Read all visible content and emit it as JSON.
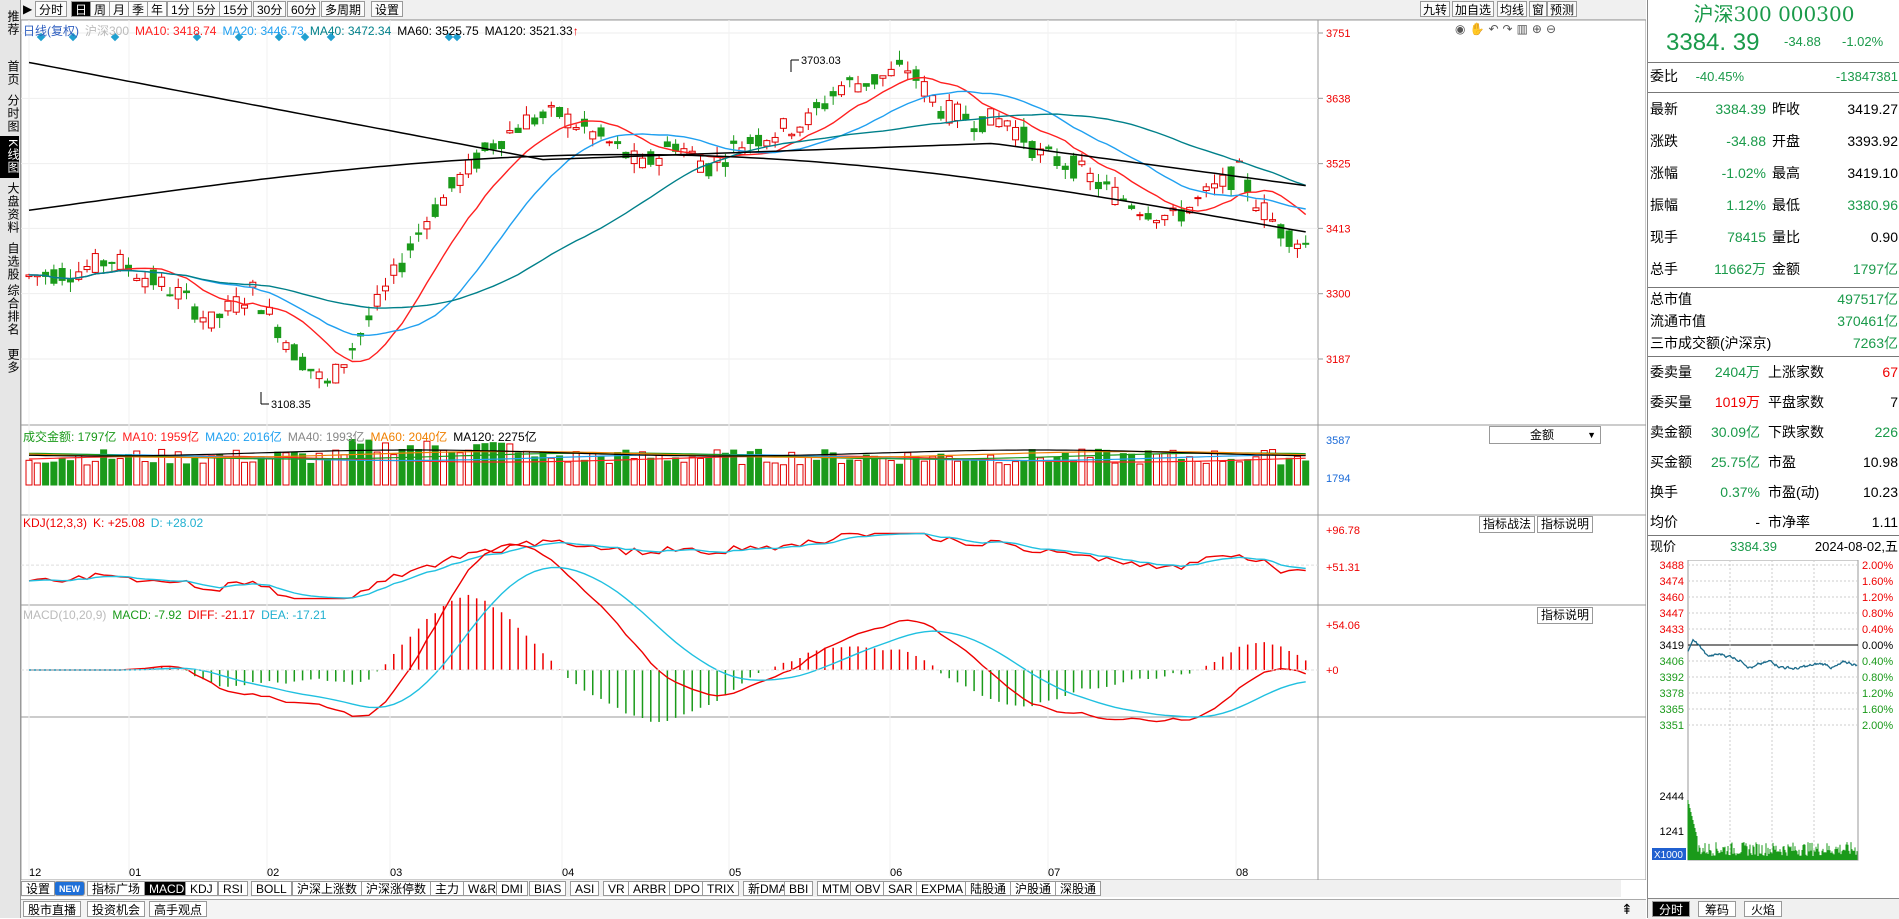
{
  "left_tabs": [
    "推荐",
    "首页",
    "分时图",
    "K线图",
    "大盘资料",
    "自选股",
    "综合排名",
    "更多"
  ],
  "toolbar": {
    "arrow": "▶",
    "periods": [
      "分时",
      "日",
      "周",
      "月",
      "季",
      "年",
      "1分",
      "5分",
      "15分",
      "30分",
      "60分",
      "多周期",
      "设置"
    ],
    "active_period": "日",
    "right": [
      "九转",
      "加自选",
      "均线",
      "窗",
      "预测"
    ]
  },
  "legend": {
    "title": "日线(复权)",
    "code_name": "沪深300",
    "ma10": "MA10: 3418.74",
    "ma20": "MA20: 3446.73",
    "ma40": "MA40: 3472.34",
    "ma60": "MA60: 3525.75",
    "ma120": "MA120: 3521.33",
    "ma120_arrow": "↑"
  },
  "price_axis": [
    "3751",
    "3638",
    "3525",
    "3413",
    "3300",
    "3187"
  ],
  "annotations": {
    "high": "3703.03",
    "low": "3108.35"
  },
  "volume": {
    "legend": {
      "total": "成交金额: 1797亿",
      "ma10": "MA10: 1959亿",
      "ma20": "MA20: 2016亿",
      "ma40": "MA40: 1993亿",
      "ma60": "MA60: 2040亿",
      "ma120": "MA120: 2275亿"
    },
    "selector": "金额",
    "selector_arrow": "▼",
    "axis": [
      "3587",
      "1794"
    ]
  },
  "kdj": {
    "legend": {
      "name": "KDJ(12,3,3)",
      "k": "K: +25.08",
      "d": "D: +28.02"
    },
    "btn1": "指标战法",
    "btn2": "指标说明",
    "axis": [
      "+96.78",
      "+51.31"
    ]
  },
  "macd": {
    "legend": {
      "name": "MACD(10,20,9)",
      "macd": "MACD: -7.92",
      "diff": "DIFF: -21.17",
      "dea": "DEA: -17.21"
    },
    "btn": "指标说明",
    "axis": [
      "+54.06",
      "+0"
    ]
  },
  "date_axis": [
    "12",
    "01",
    "02",
    "03",
    "04",
    "05",
    "06",
    "07",
    "08"
  ],
  "indicator_tabs": [
    "设置",
    "NEW",
    "指标广场",
    "MACD",
    "KDJ",
    "RSI",
    "BOLL",
    "沪深上涨数",
    "沪深涨停数",
    "主力",
    "W&R",
    "DMI",
    "BIAS",
    "ASI",
    "VR",
    "ARBR",
    "DPO",
    "TRIX",
    "新DMA",
    "BBI",
    "MTM",
    "OBV",
    "SAR",
    "EXPMA",
    "陆股通",
    "沪股通",
    "深股通"
  ],
  "active_indicator": "MACD",
  "bottom_bar": [
    "股市直播",
    "投资机会",
    "高手观点"
  ],
  "bottom_arrow": "⇞",
  "quote": {
    "title": "沪深300 000300",
    "price": "3384. 39",
    "change": "-34.88",
    "change_pct": "-1.02%",
    "weibi_label": "委比",
    "weibi_pct": "-40.45%",
    "weibi_val": "-13847381",
    "rows": [
      {
        "k1": "最新",
        "v1": "3384.39",
        "k2": "昨收",
        "v2": "3419.27"
      },
      {
        "k1": "涨跌",
        "v1": "-34.88",
        "k2": "开盘",
        "v2": "3393.92"
      },
      {
        "k1": "涨幅",
        "v1": "-1.02%",
        "k2": "最高",
        "v2": "3419.10"
      },
      {
        "k1": "振幅",
        "v1": "1.12%",
        "k2": "最低",
        "v2": "3380.96"
      },
      {
        "k1": "现手",
        "v1": "78415",
        "k2": "量比",
        "v2": "0.90"
      },
      {
        "k1": "总手",
        "v1": "11662万",
        "k2": "金额",
        "v2": "1797亿"
      }
    ],
    "mkt": [
      {
        "k": "总市值",
        "v": "497517亿"
      },
      {
        "k": "流通市值",
        "v": "370461亿"
      },
      {
        "k": "三市成交额(沪深京)",
        "v": "7263亿"
      }
    ],
    "rows2": [
      {
        "k1": "委卖量",
        "v1": "2404万",
        "k2": "上涨家数",
        "v2": "67"
      },
      {
        "k1": "委买量",
        "v1": "1019万",
        "k2": "平盘家数",
        "v2": "7"
      },
      {
        "k1": "卖金额",
        "v1": "30.09亿",
        "k2": "下跌家数",
        "v2": "226"
      },
      {
        "k1": "买金额",
        "v1": "25.75亿",
        "k2": "市盈",
        "v2": "10.98"
      },
      {
        "k1": "换手",
        "v1": "0.37%",
        "k2": "市盈(动)",
        "v2": "10.23"
      },
      {
        "k1": "均价",
        "v1": "-",
        "k2": "市净率",
        "v2": "1.11"
      }
    ],
    "now_label": "现价",
    "now_val": "3384.39",
    "now_date": "2024-08-02,五",
    "mini_left": [
      "3488",
      "3474",
      "3460",
      "3447",
      "3433",
      "3419",
      "3406",
      "3392",
      "3378",
      "3365",
      "3351"
    ],
    "mini_right": [
      "2.00%",
      "1.60%",
      "1.20%",
      "0.80%",
      "0.40%",
      "0.00%",
      "0.40%",
      "0.80%",
      "1.20%",
      "1.60%",
      "2.00%"
    ],
    "mini_vol": [
      "2444",
      "1241"
    ],
    "mini_unit": "X1000",
    "tabs": [
      "分时",
      "筹码",
      "火焰"
    ]
  },
  "colors": {
    "up": "#e00000",
    "down": "#1a9a1a",
    "ma10": "#ff2020",
    "ma20": "#20a0f0",
    "ma40": "#00808a",
    "ma60": "#000000",
    "ma120": "#000000"
  }
}
